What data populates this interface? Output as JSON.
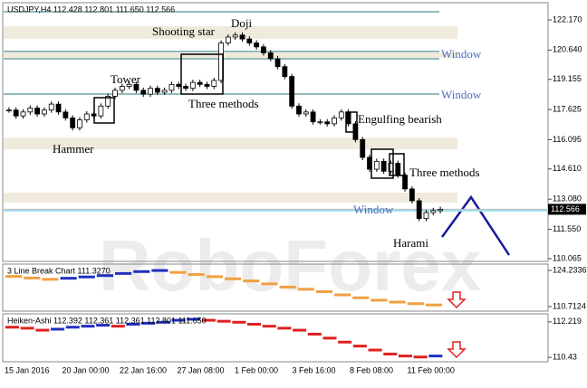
{
  "chart_data": [
    {
      "type": "candlestick",
      "title": "USDJPY,H4  112.428 112.801 111.650 112.566",
      "categories": [
        "15 Jan 2016",
        "20 Jan 00:00",
        "22 Jan 16:00",
        "27 Jan 08:00",
        "1 Feb 00:00",
        "3 Feb 16:00",
        "8 Feb 08:00",
        "11 Feb 00:00"
      ],
      "close": [
        117.6,
        117.3,
        117.5,
        117.7,
        117.4,
        117.6,
        117.9,
        117.5,
        117.2,
        116.7,
        117.1,
        117.4,
        117.3,
        117.8,
        118.3,
        118.6,
        118.8,
        118.9,
        118.6,
        118.4,
        118.7,
        118.5,
        118.6,
        118.9,
        118.8,
        118.7,
        119.0,
        118.9,
        118.8,
        119.1,
        121.0,
        121.3,
        121.4,
        121.2,
        121.0,
        120.8,
        120.5,
        120.2,
        119.8,
        119.3,
        117.8,
        117.4,
        117.5,
        117.0,
        117.0,
        116.9,
        117.2,
        117.5,
        116.9,
        116.1,
        115.2,
        114.6,
        115.0,
        114.5,
        114.9,
        114.3,
        113.6,
        113.0,
        112.1,
        112.4,
        112.5,
        112.566
      ],
      "last": 112.566,
      "ylim": [
        109.88,
        122.995
      ],
      "yticks": [
        {
          "value": 122.17,
          "label": "122.170"
        },
        {
          "value": 120.64,
          "label": "120.640"
        },
        119.155,
        117.625,
        116.095,
        {
          "value": 114.61,
          "label": "114.610"
        },
        {
          "value": 113.08,
          "label": "113.080"
        },
        {
          "value": 111.55,
          "label": "111.550"
        },
        110.065
      ],
      "zones": [
        [
          121.21,
          121.85
        ],
        [
          120.24,
          120.52
        ],
        [
          115.6,
          116.2
        ],
        [
          112.91,
          113.41
        ]
      ],
      "levels": [
        122.58,
        120.57,
        120.2,
        118.41
      ],
      "window_level": 112.5,
      "annotations": [
        "Shooting star",
        "Doji",
        "Window",
        "Window",
        "Tower",
        "Three methods",
        "Engulfing bearish",
        "Hammer",
        "Three methods",
        "Window",
        "Harami"
      ]
    },
    {
      "type": "line-break",
      "title": "3 Line Break Chart 111.3270",
      "values": [
        122.0,
        121.4,
        120.9,
        121.3,
        121.8,
        122.3,
        123.1,
        123.8,
        124.2,
        123.5,
        122.7,
        121.9,
        121.1,
        120.3,
        119.2,
        118.0,
        117.2,
        116.3,
        115.1,
        114.0,
        113.1,
        112.4,
        111.8,
        111.327
      ],
      "ylim": [
        109.02,
        126.26
      ],
      "yticks": [
        124.2336,
        110.7124
      ]
    },
    {
      "type": "heiken-ashi",
      "title": "Heiken-Ashi  112.392 112.361 112.361 112.801 111.650",
      "values": [
        111.95,
        111.9,
        111.8,
        111.85,
        111.95,
        112.0,
        112.05,
        112.0,
        112.1,
        112.15,
        112.2,
        112.3,
        112.35,
        112.3,
        112.25,
        112.2,
        112.1,
        112.0,
        111.9,
        111.8,
        111.6,
        111.4,
        111.2,
        111.0,
        110.8,
        110.6,
        110.5,
        110.45,
        110.5
      ],
      "ylim": [
        110.21,
        112.577
      ],
      "yticks": [
        112.219,
        110.43
      ]
    }
  ],
  "watermark": "RoboForex"
}
